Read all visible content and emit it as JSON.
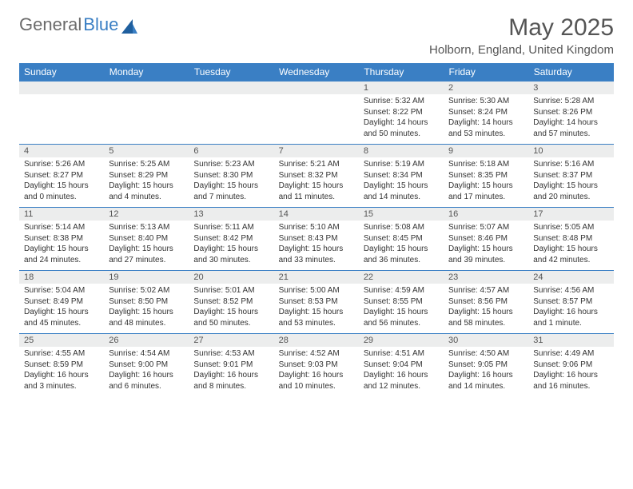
{
  "brand": {
    "part1": "General",
    "part2": "Blue"
  },
  "title": "May 2025",
  "location": "Holborn, England, United Kingdom",
  "colors": {
    "header_bg": "#3a7fc4",
    "header_text": "#ffffff",
    "daynum_bg": "#eceded",
    "border": "#3a7fc4",
    "logo_gray": "#6b6b6b",
    "logo_blue": "#3a7fc4"
  },
  "weekdays": [
    "Sunday",
    "Monday",
    "Tuesday",
    "Wednesday",
    "Thursday",
    "Friday",
    "Saturday"
  ],
  "weeks": [
    [
      {
        "day": "",
        "lines": []
      },
      {
        "day": "",
        "lines": []
      },
      {
        "day": "",
        "lines": []
      },
      {
        "day": "",
        "lines": []
      },
      {
        "day": "1",
        "lines": [
          "Sunrise: 5:32 AM",
          "Sunset: 8:22 PM",
          "Daylight: 14 hours",
          "and 50 minutes."
        ]
      },
      {
        "day": "2",
        "lines": [
          "Sunrise: 5:30 AM",
          "Sunset: 8:24 PM",
          "Daylight: 14 hours",
          "and 53 minutes."
        ]
      },
      {
        "day": "3",
        "lines": [
          "Sunrise: 5:28 AM",
          "Sunset: 8:26 PM",
          "Daylight: 14 hours",
          "and 57 minutes."
        ]
      }
    ],
    [
      {
        "day": "4",
        "lines": [
          "Sunrise: 5:26 AM",
          "Sunset: 8:27 PM",
          "Daylight: 15 hours",
          "and 0 minutes."
        ]
      },
      {
        "day": "5",
        "lines": [
          "Sunrise: 5:25 AM",
          "Sunset: 8:29 PM",
          "Daylight: 15 hours",
          "and 4 minutes."
        ]
      },
      {
        "day": "6",
        "lines": [
          "Sunrise: 5:23 AM",
          "Sunset: 8:30 PM",
          "Daylight: 15 hours",
          "and 7 minutes."
        ]
      },
      {
        "day": "7",
        "lines": [
          "Sunrise: 5:21 AM",
          "Sunset: 8:32 PM",
          "Daylight: 15 hours",
          "and 11 minutes."
        ]
      },
      {
        "day": "8",
        "lines": [
          "Sunrise: 5:19 AM",
          "Sunset: 8:34 PM",
          "Daylight: 15 hours",
          "and 14 minutes."
        ]
      },
      {
        "day": "9",
        "lines": [
          "Sunrise: 5:18 AM",
          "Sunset: 8:35 PM",
          "Daylight: 15 hours",
          "and 17 minutes."
        ]
      },
      {
        "day": "10",
        "lines": [
          "Sunrise: 5:16 AM",
          "Sunset: 8:37 PM",
          "Daylight: 15 hours",
          "and 20 minutes."
        ]
      }
    ],
    [
      {
        "day": "11",
        "lines": [
          "Sunrise: 5:14 AM",
          "Sunset: 8:38 PM",
          "Daylight: 15 hours",
          "and 24 minutes."
        ]
      },
      {
        "day": "12",
        "lines": [
          "Sunrise: 5:13 AM",
          "Sunset: 8:40 PM",
          "Daylight: 15 hours",
          "and 27 minutes."
        ]
      },
      {
        "day": "13",
        "lines": [
          "Sunrise: 5:11 AM",
          "Sunset: 8:42 PM",
          "Daylight: 15 hours",
          "and 30 minutes."
        ]
      },
      {
        "day": "14",
        "lines": [
          "Sunrise: 5:10 AM",
          "Sunset: 8:43 PM",
          "Daylight: 15 hours",
          "and 33 minutes."
        ]
      },
      {
        "day": "15",
        "lines": [
          "Sunrise: 5:08 AM",
          "Sunset: 8:45 PM",
          "Daylight: 15 hours",
          "and 36 minutes."
        ]
      },
      {
        "day": "16",
        "lines": [
          "Sunrise: 5:07 AM",
          "Sunset: 8:46 PM",
          "Daylight: 15 hours",
          "and 39 minutes."
        ]
      },
      {
        "day": "17",
        "lines": [
          "Sunrise: 5:05 AM",
          "Sunset: 8:48 PM",
          "Daylight: 15 hours",
          "and 42 minutes."
        ]
      }
    ],
    [
      {
        "day": "18",
        "lines": [
          "Sunrise: 5:04 AM",
          "Sunset: 8:49 PM",
          "Daylight: 15 hours",
          "and 45 minutes."
        ]
      },
      {
        "day": "19",
        "lines": [
          "Sunrise: 5:02 AM",
          "Sunset: 8:50 PM",
          "Daylight: 15 hours",
          "and 48 minutes."
        ]
      },
      {
        "day": "20",
        "lines": [
          "Sunrise: 5:01 AM",
          "Sunset: 8:52 PM",
          "Daylight: 15 hours",
          "and 50 minutes."
        ]
      },
      {
        "day": "21",
        "lines": [
          "Sunrise: 5:00 AM",
          "Sunset: 8:53 PM",
          "Daylight: 15 hours",
          "and 53 minutes."
        ]
      },
      {
        "day": "22",
        "lines": [
          "Sunrise: 4:59 AM",
          "Sunset: 8:55 PM",
          "Daylight: 15 hours",
          "and 56 minutes."
        ]
      },
      {
        "day": "23",
        "lines": [
          "Sunrise: 4:57 AM",
          "Sunset: 8:56 PM",
          "Daylight: 15 hours",
          "and 58 minutes."
        ]
      },
      {
        "day": "24",
        "lines": [
          "Sunrise: 4:56 AM",
          "Sunset: 8:57 PM",
          "Daylight: 16 hours",
          "and 1 minute."
        ]
      }
    ],
    [
      {
        "day": "25",
        "lines": [
          "Sunrise: 4:55 AM",
          "Sunset: 8:59 PM",
          "Daylight: 16 hours",
          "and 3 minutes."
        ]
      },
      {
        "day": "26",
        "lines": [
          "Sunrise: 4:54 AM",
          "Sunset: 9:00 PM",
          "Daylight: 16 hours",
          "and 6 minutes."
        ]
      },
      {
        "day": "27",
        "lines": [
          "Sunrise: 4:53 AM",
          "Sunset: 9:01 PM",
          "Daylight: 16 hours",
          "and 8 minutes."
        ]
      },
      {
        "day": "28",
        "lines": [
          "Sunrise: 4:52 AM",
          "Sunset: 9:03 PM",
          "Daylight: 16 hours",
          "and 10 minutes."
        ]
      },
      {
        "day": "29",
        "lines": [
          "Sunrise: 4:51 AM",
          "Sunset: 9:04 PM",
          "Daylight: 16 hours",
          "and 12 minutes."
        ]
      },
      {
        "day": "30",
        "lines": [
          "Sunrise: 4:50 AM",
          "Sunset: 9:05 PM",
          "Daylight: 16 hours",
          "and 14 minutes."
        ]
      },
      {
        "day": "31",
        "lines": [
          "Sunrise: 4:49 AM",
          "Sunset: 9:06 PM",
          "Daylight: 16 hours",
          "and 16 minutes."
        ]
      }
    ]
  ]
}
